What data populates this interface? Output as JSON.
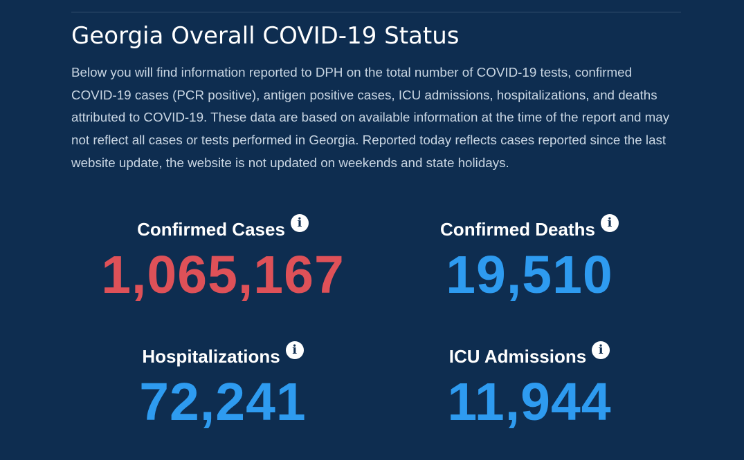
{
  "page": {
    "title": "Georgia Overall COVID-19 Status",
    "intro": "Below you will find information reported to DPH on the total number of COVID-19 tests, confirmed COVID-19 cases (PCR positive), antigen positive cases, ICU admissions, hospitalizations, and deaths attributed to COVID-19. These data are based on available information at the time of the report and may not reflect all cases or tests performed in Georgia. Reported today reflects cases reported since the last website update, the website is not updated on weekends and state holidays."
  },
  "icons": {
    "info": "info-icon",
    "info_glyph": "i"
  },
  "colors": {
    "background": "#0e2d50",
    "cases": "#de5158",
    "highlight_blue": "#2e9bf0",
    "text": "#ffffff"
  },
  "stats": {
    "confirmed_cases": {
      "label": "Confirmed Cases",
      "value": "1,065,167",
      "color": "#de5158"
    },
    "confirmed_deaths": {
      "label": "Confirmed Deaths",
      "value": "19,510",
      "color": "#2e9bf0"
    },
    "hospitalizations": {
      "label": "Hospitalizations",
      "value": "72,241",
      "color": "#2e9bf0"
    },
    "icu_admissions": {
      "label": "ICU Admissions",
      "value": "11,944",
      "color": "#2e9bf0"
    }
  }
}
